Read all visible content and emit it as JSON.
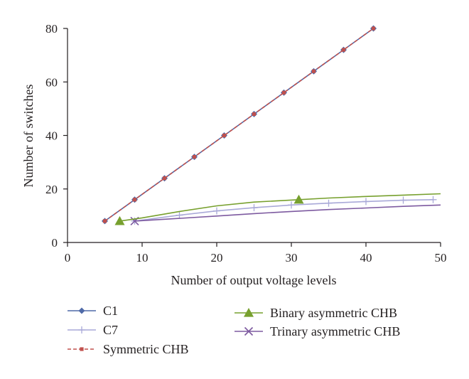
{
  "chart_data": {
    "type": "line",
    "title": "",
    "xlabel": "Number of output voltage levels",
    "ylabel": "Number of switches",
    "xlim": [
      0,
      50
    ],
    "ylim": [
      0,
      80
    ],
    "xticks": [
      0,
      10,
      20,
      30,
      40,
      50
    ],
    "yticks": [
      0,
      20,
      40,
      60,
      80
    ],
    "grid": false,
    "legend_position": "bottom",
    "series": [
      {
        "name": "C1",
        "color": "#4f6aa8",
        "marker": "diamond",
        "line": "solid",
        "x": [
          5,
          9,
          13,
          17,
          21,
          25,
          29,
          33,
          37,
          41
        ],
        "y": [
          8,
          16,
          24,
          32,
          40,
          48,
          56,
          64,
          72,
          80
        ]
      },
      {
        "name": "C7",
        "color": "#a9a9d8",
        "marker": "plus",
        "line": "solid",
        "x": [
          9,
          15,
          20,
          25,
          30,
          35,
          40,
          45,
          49
        ],
        "y": [
          8,
          10.2,
          11.8,
          13,
          14,
          14.7,
          15.3,
          15.8,
          16
        ]
      },
      {
        "name": "Symmetric CHB",
        "color": "#c0504d",
        "marker": "square",
        "line": "dashed",
        "x": [
          5,
          9,
          13,
          17,
          21,
          25,
          29,
          33,
          37,
          41
        ],
        "y": [
          8,
          16,
          24,
          32,
          40,
          48,
          56,
          64,
          72,
          80
        ]
      },
      {
        "name": "Binary asymmetric CHB",
        "color": "#77a02e",
        "marker": "triangle",
        "line": "solid",
        "x": [
          7,
          10,
          15,
          20,
          25,
          31,
          35,
          40,
          45,
          50
        ],
        "y": [
          8,
          9.2,
          11.6,
          13.7,
          15.1,
          16,
          16.6,
          17.2,
          17.7,
          18.2
        ],
        "marker_x": [
          7,
          31
        ]
      },
      {
        "name": "Trinary asymmetric CHB",
        "color": "#7d5aa0",
        "marker": "x",
        "line": "solid",
        "x": [
          9,
          15,
          20,
          25,
          30,
          35,
          40,
          45,
          50
        ],
        "y": [
          8,
          9,
          9.9,
          10.8,
          11.6,
          12.3,
          12.9,
          13.5,
          14
        ],
        "marker_x": [
          9
        ]
      }
    ]
  }
}
